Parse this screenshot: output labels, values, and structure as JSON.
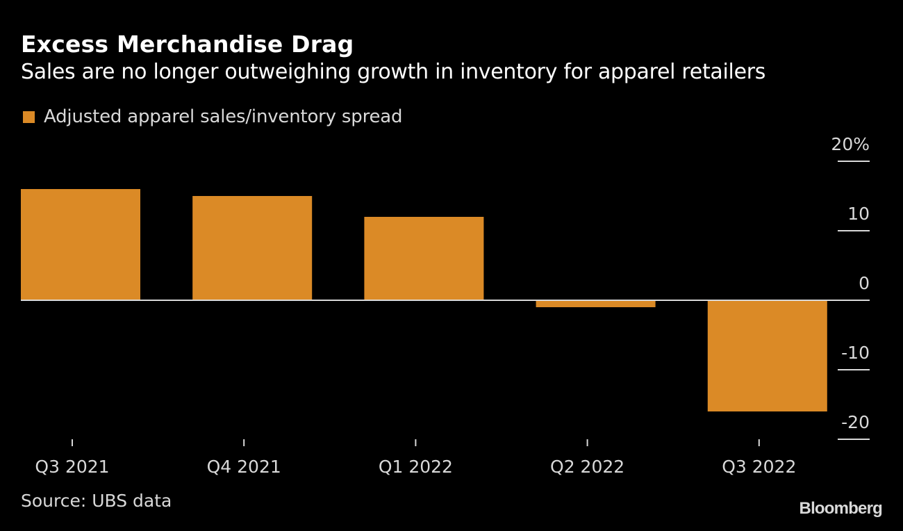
{
  "chart_data": {
    "type": "bar",
    "title": "Excess Merchandise Drag",
    "subtitle": "Sales are no longer outweighing growth in inventory for apparel retailers",
    "categories": [
      "Q3 2021",
      "Q4 2021",
      "Q1 2022",
      "Q2 2022",
      "Q3 2022"
    ],
    "series": [
      {
        "name": "Adjusted apparel sales/inventory spread",
        "values": [
          16.0,
          15.0,
          12.0,
          -1.0,
          -16.0
        ],
        "color": "#db8a26"
      }
    ],
    "xlabel": "",
    "ylabel": "",
    "ylim": [
      -20,
      20
    ],
    "yticks": [
      20,
      10,
      0,
      -10,
      -20
    ],
    "ytick_labels": [
      "20%",
      "10",
      "0",
      "-10",
      "-20"
    ],
    "y_axis_side": "right",
    "grid": false,
    "legend_position": "top-left",
    "source": "Source: UBS data",
    "brand": "Bloomberg"
  }
}
